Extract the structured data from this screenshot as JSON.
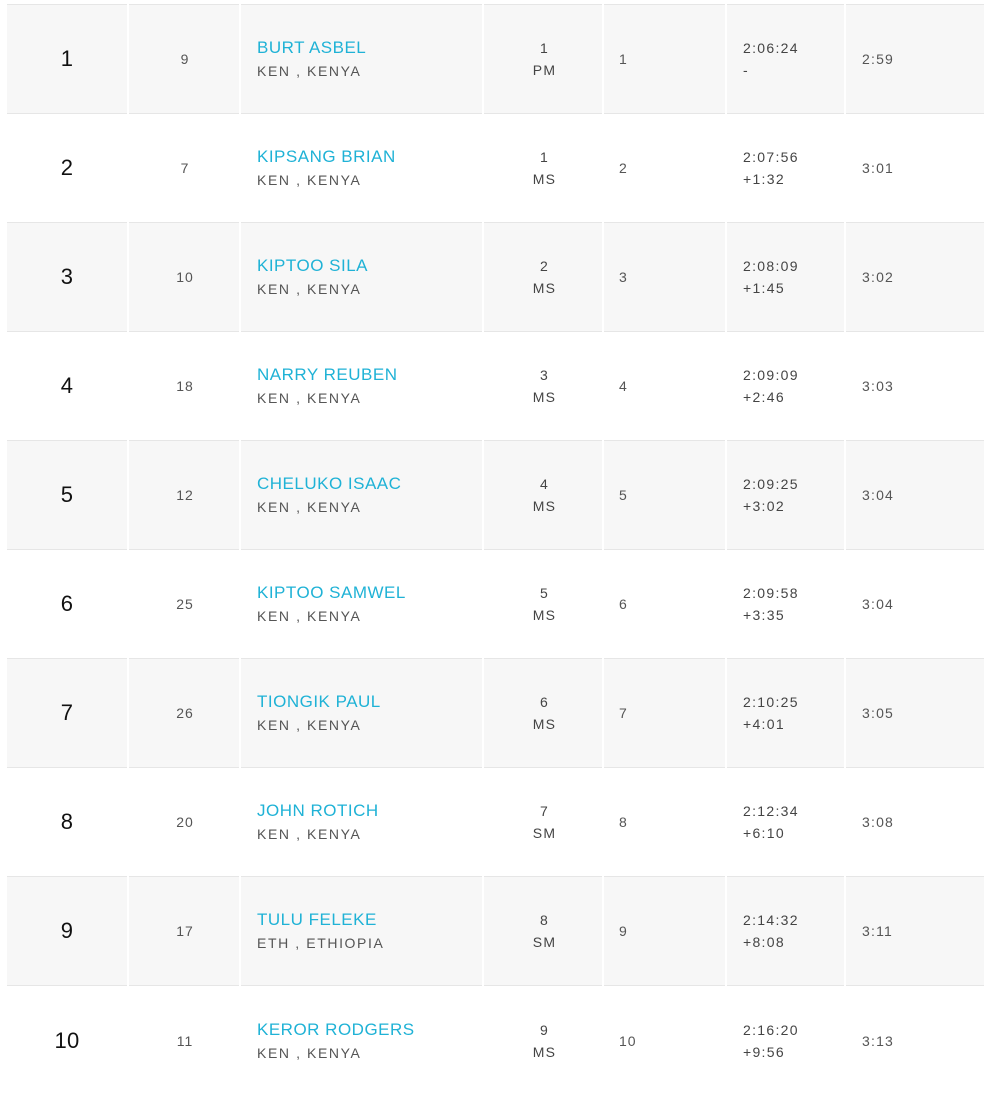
{
  "results": [
    {
      "rank": "1",
      "bib": "9",
      "name": "BURT ASBEL",
      "country": "KEN , KENYA",
      "cat_place": "1",
      "cat": "PM",
      "gender_place": "1",
      "time": "2:06:24",
      "gap": "-",
      "pace": "2:59"
    },
    {
      "rank": "2",
      "bib": "7",
      "name": "KIPSANG BRIAN",
      "country": "KEN , KENYA",
      "cat_place": "1",
      "cat": "MS",
      "gender_place": "2",
      "time": "2:07:56",
      "gap": "+1:32",
      "pace": "3:01"
    },
    {
      "rank": "3",
      "bib": "10",
      "name": "KIPTOO SILA",
      "country": "KEN , KENYA",
      "cat_place": "2",
      "cat": "MS",
      "gender_place": "3",
      "time": "2:08:09",
      "gap": "+1:45",
      "pace": "3:02"
    },
    {
      "rank": "4",
      "bib": "18",
      "name": "NARRY REUBEN",
      "country": "KEN , KENYA",
      "cat_place": "3",
      "cat": "MS",
      "gender_place": "4",
      "time": "2:09:09",
      "gap": "+2:46",
      "pace": "3:03"
    },
    {
      "rank": "5",
      "bib": "12",
      "name": "CHELUKO ISAAC",
      "country": "KEN , KENYA",
      "cat_place": "4",
      "cat": "MS",
      "gender_place": "5",
      "time": "2:09:25",
      "gap": "+3:02",
      "pace": "3:04"
    },
    {
      "rank": "6",
      "bib": "25",
      "name": "KIPTOO SAMWEL",
      "country": "KEN , KENYA",
      "cat_place": "5",
      "cat": "MS",
      "gender_place": "6",
      "time": "2:09:58",
      "gap": "+3:35",
      "pace": "3:04"
    },
    {
      "rank": "7",
      "bib": "26",
      "name": "TIONGIK PAUL",
      "country": "KEN , KENYA",
      "cat_place": "6",
      "cat": "MS",
      "gender_place": "7",
      "time": "2:10:25",
      "gap": "+4:01",
      "pace": "3:05"
    },
    {
      "rank": "8",
      "bib": "20",
      "name": "JOHN ROTICH",
      "country": "KEN , KENYA",
      "cat_place": "7",
      "cat": "SM",
      "gender_place": "8",
      "time": "2:12:34",
      "gap": "+6:10",
      "pace": "3:08"
    },
    {
      "rank": "9",
      "bib": "17",
      "name": "TULU FELEKE",
      "country": "ETH , ETHIOPIA",
      "cat_place": "8",
      "cat": "SM",
      "gender_place": "9",
      "time": "2:14:32",
      "gap": "+8:08",
      "pace": "3:11"
    },
    {
      "rank": "10",
      "bib": "11",
      "name": "KEROR RODGERS",
      "country": "KEN , KENYA",
      "cat_place": "9",
      "cat": "MS",
      "gender_place": "10",
      "time": "2:16:20",
      "gap": "+9:56",
      "pace": "3:13"
    }
  ],
  "colors": {
    "name_link": "#1fb2d6",
    "row_alt": "#f7f7f7",
    "divider": "#e6e6e6"
  }
}
